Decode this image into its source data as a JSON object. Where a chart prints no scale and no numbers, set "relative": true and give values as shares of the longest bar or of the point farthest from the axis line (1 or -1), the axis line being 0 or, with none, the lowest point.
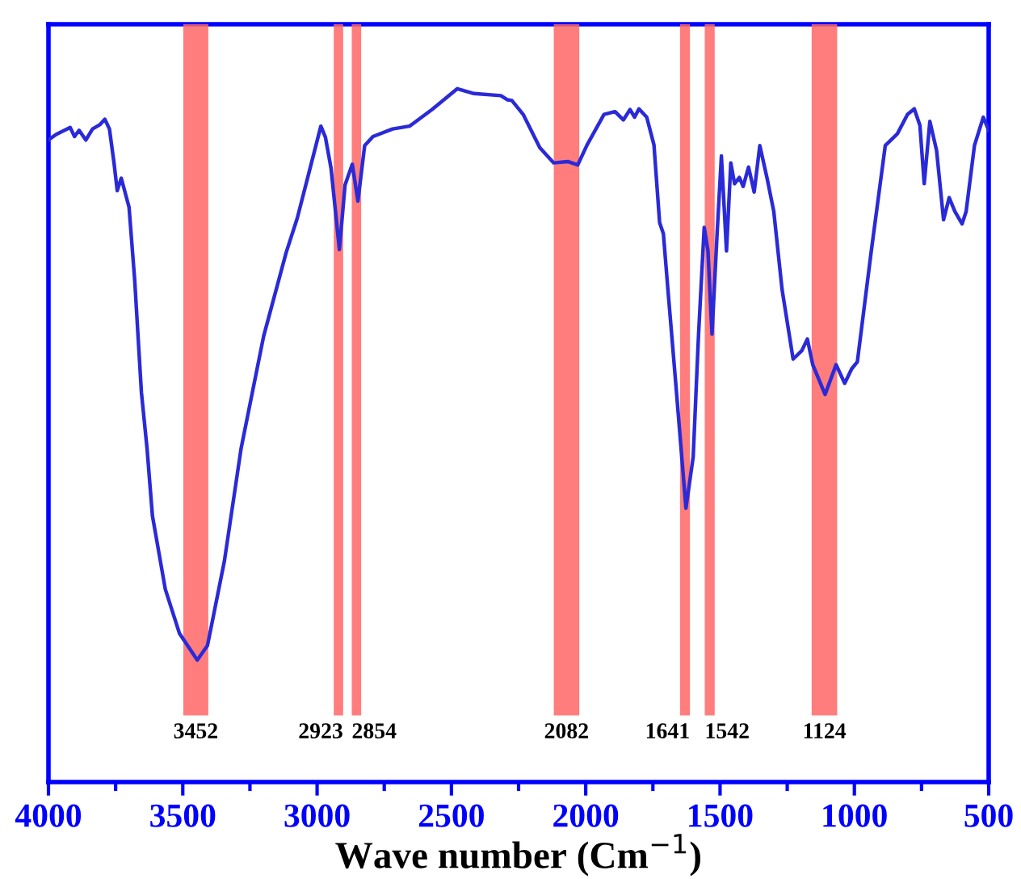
{
  "chart_data": {
    "type": "line",
    "relative": true,
    "xlabel": "Wave number (Cm$^{−1}$)",
    "xlim": [
      4000,
      500
    ],
    "xticks": [
      4000,
      3500,
      3000,
      2500,
      2000,
      1500,
      1000,
      500
    ],
    "grid": false,
    "marker": "none",
    "line_style": "solid",
    "series": [
      {
        "color": "#2a2ad8",
        "x": [
          4000,
          3972,
          3919,
          3903,
          3886,
          3861,
          3836,
          3809,
          3790,
          3773,
          3756,
          3744,
          3729,
          3700,
          3679,
          3654,
          3633,
          3613,
          3565,
          3512,
          3446,
          3408,
          3345,
          3283,
          3199,
          3115,
          3074,
          3021,
          2986,
          2969,
          2948,
          2917,
          2896,
          2869,
          2848,
          2823,
          2792,
          2719,
          2656,
          2572,
          2478,
          2416,
          2316,
          2291,
          2275,
          2233,
          2171,
          2119,
          2067,
          2030,
          1995,
          1932,
          1891,
          1860,
          1835,
          1818,
          1802,
          1773,
          1746,
          1725,
          1711,
          1694,
          1663,
          1627,
          1600,
          1580,
          1559,
          1545,
          1530,
          1511,
          1495,
          1476,
          1460,
          1446,
          1428,
          1414,
          1394,
          1373,
          1352,
          1325,
          1300,
          1269,
          1228,
          1196,
          1175,
          1155,
          1109,
          1068,
          1036,
          1010,
          989,
          937,
          885,
          840,
          802,
          777,
          756,
          740,
          719,
          694,
          668,
          647,
          626,
          599,
          584,
          553,
          520,
          500
        ],
        "values": [
          0.926,
          0.934,
          0.944,
          0.931,
          0.94,
          0.926,
          0.942,
          0.948,
          0.956,
          0.942,
          0.893,
          0.853,
          0.871,
          0.829,
          0.724,
          0.562,
          0.481,
          0.384,
          0.278,
          0.214,
          0.176,
          0.197,
          0.319,
          0.481,
          0.643,
          0.764,
          0.813,
          0.893,
          0.946,
          0.93,
          0.885,
          0.768,
          0.861,
          0.891,
          0.838,
          0.918,
          0.931,
          0.942,
          0.946,
          0.97,
          1.0,
          0.993,
          0.99,
          0.984,
          0.983,
          0.963,
          0.915,
          0.893,
          0.895,
          0.89,
          0.919,
          0.963,
          0.967,
          0.955,
          0.97,
          0.959,
          0.971,
          0.959,
          0.919,
          0.807,
          0.791,
          0.71,
          0.566,
          0.395,
          0.469,
          0.646,
          0.8,
          0.766,
          0.646,
          0.791,
          0.903,
          0.766,
          0.893,
          0.863,
          0.872,
          0.859,
          0.887,
          0.851,
          0.918,
          0.871,
          0.823,
          0.71,
          0.61,
          0.622,
          0.639,
          0.602,
          0.559,
          0.602,
          0.575,
          0.596,
          0.606,
          0.766,
          0.918,
          0.935,
          0.963,
          0.971,
          0.947,
          0.863,
          0.953,
          0.911,
          0.811,
          0.843,
          0.823,
          0.805,
          0.823,
          0.918,
          0.959,
          0.94
        ]
      }
    ],
    "bands": [
      {
        "axis": "x",
        "from": 3498,
        "to": 3405,
        "label": "3452",
        "color": "#ff6666"
      },
      {
        "axis": "x",
        "from": 2938,
        "to": 2903,
        "label": "2923",
        "color": "#ff6666"
      },
      {
        "axis": "x",
        "from": 2871,
        "to": 2836,
        "label": "2854",
        "color": "#ff6666"
      },
      {
        "axis": "x",
        "from": 2119,
        "to": 2024,
        "label": "2082",
        "color": "#ff6666"
      },
      {
        "axis": "x",
        "from": 1649,
        "to": 1612,
        "label": "1641",
        "color": "#ff6666"
      },
      {
        "axis": "x",
        "from": 1557,
        "to": 1520,
        "label": "1542",
        "color": "#ff6666"
      },
      {
        "axis": "x",
        "from": 1159,
        "to": 1064,
        "label": "1124",
        "color": "#ff6666"
      }
    ]
  }
}
